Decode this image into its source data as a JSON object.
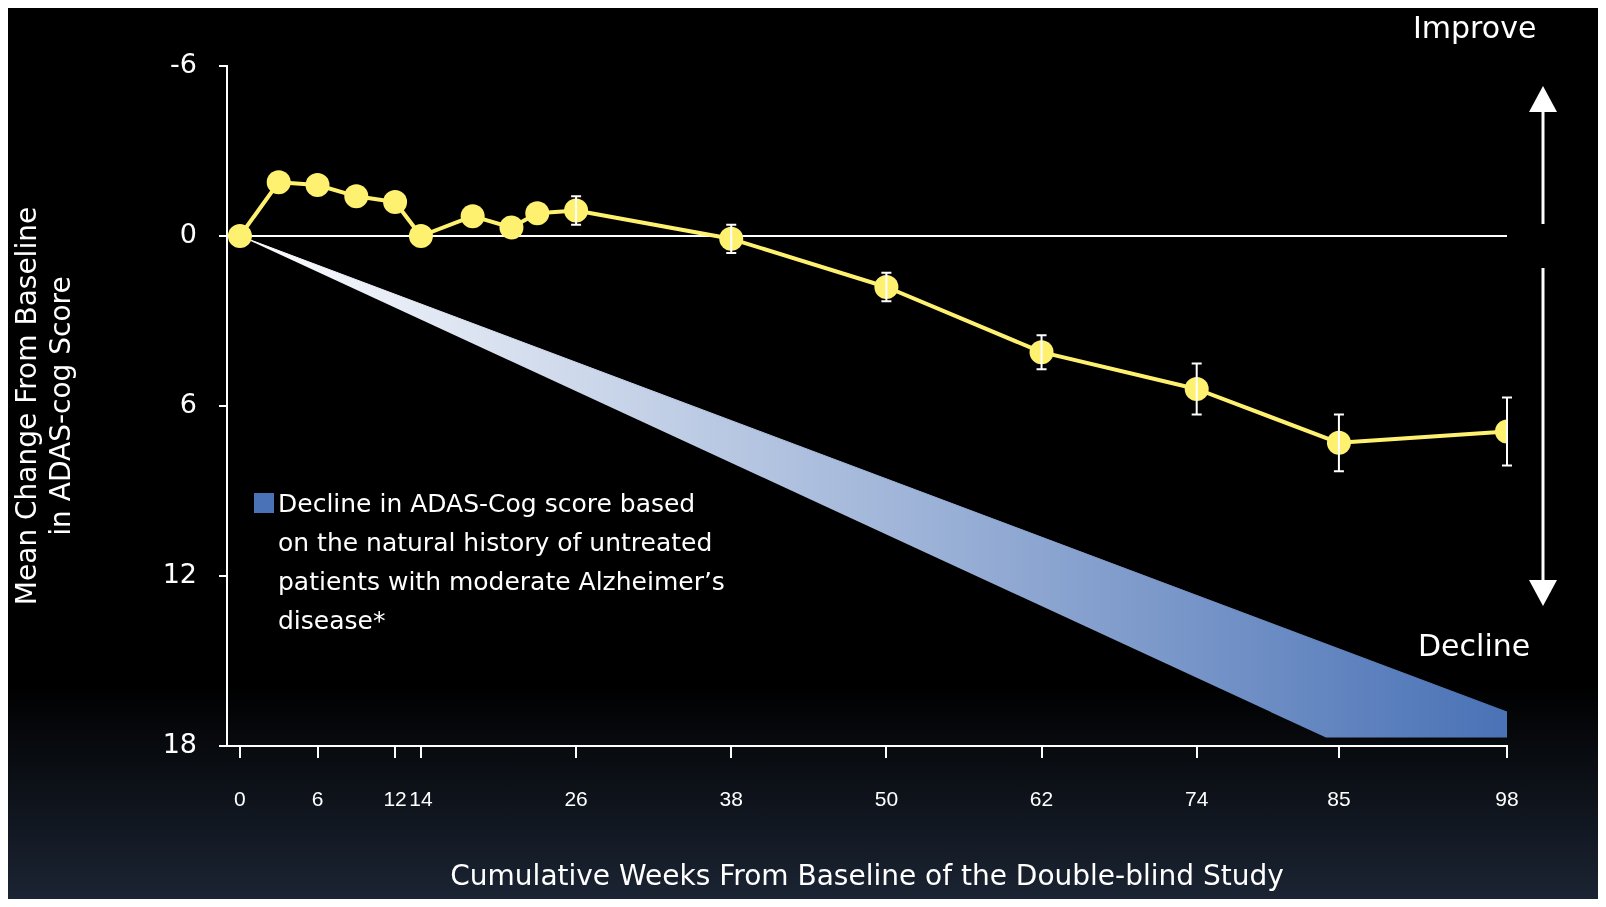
{
  "chart_data": {
    "type": "line",
    "xlabel": "Cumulative Weeks From Baseline of the Double-blind Study",
    "ylabel": "Mean Change From Baseline in ADAS-cog Score",
    "xlim": [
      -1,
      98
    ],
    "xticks": [
      0,
      6,
      12,
      14,
      26,
      38,
      50,
      62,
      74,
      85,
      98
    ],
    "ylim": [
      18,
      -6
    ],
    "yticks": [
      -6,
      0,
      6,
      12,
      18
    ],
    "grid": false,
    "legend": "left",
    "marker": "circle",
    "annotations": [
      "Improve",
      "Decline"
    ],
    "ref_lines": [
      {
        "axis": "y",
        "value": 0,
        "color": "#ffffff"
      }
    ],
    "series": [
      {
        "type": "line",
        "marker": "none",
        "name": "Decline in ADAS-Cog score based on the natural history of untreated patients with moderate Alzheimer’s disease*",
        "color": "#4a72b6",
        "x": [
          0,
          84,
          98
        ],
        "values": [
          0,
          14.4,
          16.8
        ],
        "lower": [
          0,
          14.4,
          16.8
        ],
        "upper": [
          0,
          17.7,
          17.7
        ]
      },
      {
        "type": "line",
        "color": "#fff170",
        "x": [
          0,
          3,
          6,
          9,
          12,
          14,
          18,
          21,
          23,
          26,
          38,
          50,
          62,
          74,
          85,
          98
        ],
        "values": [
          0,
          -1.9,
          -1.8,
          -1.4,
          -1.2,
          0,
          -0.7,
          -0.3,
          -0.8,
          -0.9,
          0.1,
          1.8,
          4.1,
          5.4,
          7.3,
          6.9
        ],
        "errors": [
          null,
          null,
          null,
          null,
          null,
          null,
          null,
          null,
          null,
          0.5,
          0.5,
          0.5,
          0.6,
          0.9,
          1.0,
          1.2
        ]
      }
    ]
  }
}
